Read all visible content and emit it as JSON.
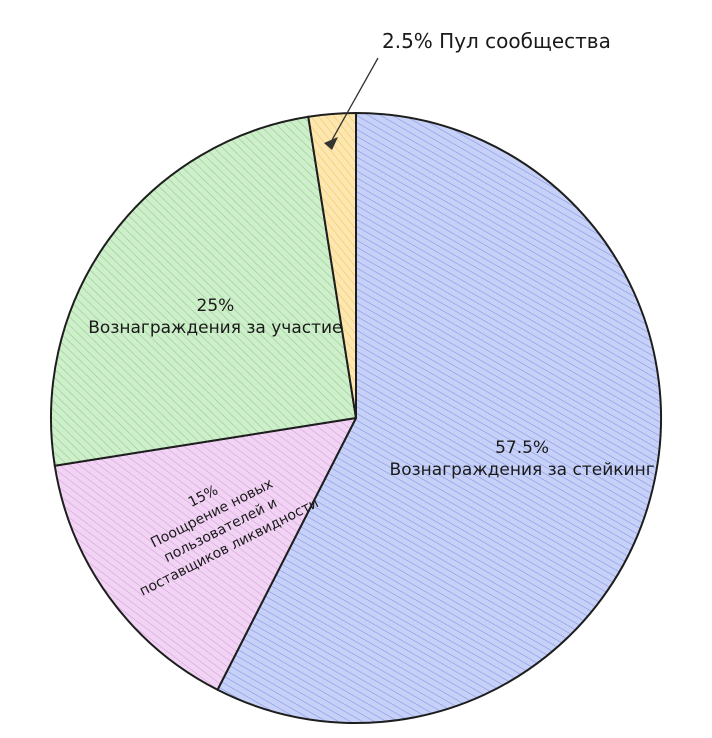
{
  "chart_data": {
    "type": "pie",
    "title": "",
    "start_angle_deg": 0,
    "direction": "clockwise",
    "slices": [
      {
        "name_lines": [
          "Вознаграждения за стейкинг"
        ],
        "value": 57.5,
        "value_label": "57.5%",
        "color": "#c7d1f7",
        "hatch": "#7f93e6"
      },
      {
        "name_lines": [
          "Поощрение новых",
          "пользователей и",
          "поставщиков ликвидности"
        ],
        "value": 15,
        "value_label": "15%",
        "color": "#f1d4f3",
        "hatch": "#d79ae0"
      },
      {
        "name_lines": [
          "Вознаграждения за участие"
        ],
        "value": 25,
        "value_label": "25%",
        "color": "#cfeecb",
        "hatch": "#86cf84"
      },
      {
        "name_lines": [
          "Пул сообщества"
        ],
        "value": 2.5,
        "value_label": "2.5%",
        "color": "#fde7b0",
        "hatch": "#f2c35c"
      }
    ],
    "callout": {
      "slice_index": 3,
      "text": "2.5% Пул сообщества"
    },
    "legend": "none"
  }
}
